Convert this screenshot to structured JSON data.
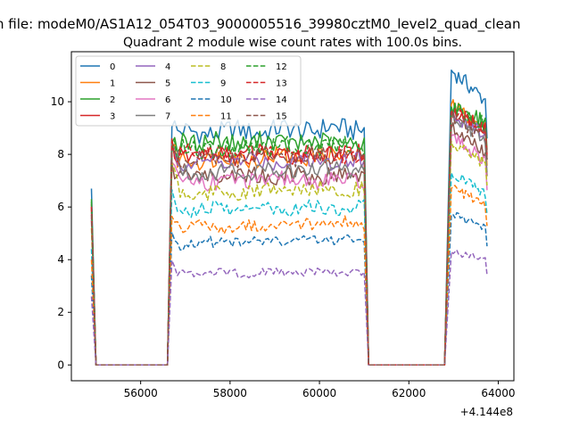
{
  "figure": {
    "suptitle": "n file: modeM0/AS1A12_054T03_9000005516_39980cztM0_level2_quad_clean",
    "title": "Quadrant 2 module wise count rates with 100.0s bins."
  },
  "chart_data": {
    "type": "line",
    "title": "Quadrant 2 module wise count rates with 100.0s bins.",
    "xlabel": "",
    "ylabel": "",
    "x_offset_label": "+4.144e8",
    "x_offset": 414400000,
    "xlim": [
      54450,
      64350
    ],
    "ylim": [
      -0.6,
      11.9
    ],
    "xticks": [
      56000,
      58000,
      60000,
      62000,
      64000
    ],
    "xtick_labels": [
      "56000",
      "58000",
      "60000",
      "62000",
      "64000"
    ],
    "yticks": [
      0,
      2,
      4,
      6,
      8,
      10
    ],
    "ytick_labels": [
      "0",
      "2",
      "4",
      "6",
      "8",
      "10"
    ],
    "grid": false,
    "legend": {
      "placement": "upper-left",
      "columns": 4
    },
    "series": [
      {
        "name": "0",
        "color": "#1f77b4",
        "dash": "solid",
        "values": [
          6.7,
          9.3,
          8.8,
          9.0,
          8.3,
          11.2,
          10.0
        ]
      },
      {
        "name": "1",
        "color": "#ff7f0e",
        "dash": "solid",
        "values": [
          5.9,
          8.2,
          7.8,
          8.0,
          7.7,
          9.9,
          8.9
        ]
      },
      {
        "name": "2",
        "color": "#2ca02c",
        "dash": "solid",
        "values": [
          6.3,
          8.7,
          8.5,
          8.4,
          8.1,
          9.8,
          9.2
        ]
      },
      {
        "name": "3",
        "color": "#d62728",
        "dash": "solid",
        "values": [
          6.1,
          8.4,
          8.0,
          8.0,
          7.9,
          9.6,
          9.0
        ]
      },
      {
        "name": "4",
        "color": "#9467bd",
        "dash": "solid",
        "values": [
          5.8,
          8.2,
          7.7,
          7.8,
          7.6,
          9.5,
          8.7
        ]
      },
      {
        "name": "5",
        "color": "#8c564b",
        "dash": "solid",
        "values": [
          5.5,
          7.6,
          7.2,
          7.2,
          7.0,
          9.0,
          8.0
        ]
      },
      {
        "name": "6",
        "color": "#e377c2",
        "dash": "solid",
        "values": [
          5.6,
          7.6,
          7.0,
          7.0,
          6.9,
          8.7,
          7.7
        ]
      },
      {
        "name": "7",
        "color": "#7f7f7f",
        "dash": "solid",
        "values": [
          6.0,
          8.5,
          7.3,
          7.5,
          7.3,
          9.4,
          8.5
        ]
      },
      {
        "name": "8",
        "color": "#bcbd22",
        "dash": "dashed",
        "values": [
          5.2,
          7.6,
          6.5,
          6.7,
          6.5,
          8.5,
          7.6
        ]
      },
      {
        "name": "9",
        "color": "#17becf",
        "dash": "dashed",
        "values": [
          4.4,
          6.4,
          5.9,
          6.0,
          5.9,
          7.3,
          6.5
        ]
      },
      {
        "name": "10",
        "color": "#1f77b4",
        "dash": "dashed",
        "values": [
          3.4,
          5.1,
          4.6,
          4.8,
          4.6,
          5.7,
          5.2
        ]
      },
      {
        "name": "11",
        "color": "#ff7f0e",
        "dash": "dashed",
        "values": [
          4.0,
          5.9,
          5.2,
          5.4,
          5.3,
          6.7,
          6.1
        ]
      },
      {
        "name": "12",
        "color": "#2ca02c",
        "dash": "dashed",
        "values": [
          6.2,
          8.6,
          8.2,
          8.3,
          8.0,
          9.8,
          9.1
        ]
      },
      {
        "name": "13",
        "color": "#d62728",
        "dash": "dashed",
        "values": [
          6.0,
          8.3,
          8.0,
          8.0,
          7.8,
          9.6,
          9.0
        ]
      },
      {
        "name": "14",
        "color": "#9467bd",
        "dash": "dashed",
        "values": [
          2.6,
          3.8,
          3.5,
          3.5,
          3.5,
          4.3,
          4.0
        ]
      },
      {
        "name": "15",
        "color": "#8c564b",
        "dash": "dashed",
        "values": [
          5.7,
          8.0,
          7.8,
          8.0,
          7.7,
          9.4,
          8.6
        ]
      }
    ]
  }
}
